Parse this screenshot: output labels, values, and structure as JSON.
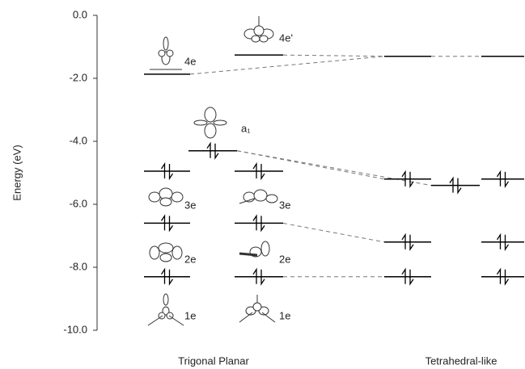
{
  "chart_data": {
    "type": "energy-levels",
    "ylabel": "Energy (eV)",
    "ylim": [
      -10,
      0
    ],
    "yticks": [
      {
        "value": 0,
        "label": "0.0"
      },
      {
        "value": -2,
        "label": "-2.0"
      },
      {
        "value": -4,
        "label": "-4.0"
      },
      {
        "value": -6,
        "label": "-6.0"
      },
      {
        "value": -8,
        "label": "-8.0"
      },
      {
        "value": -10,
        "label": "-10.0"
      }
    ],
    "group_labels": [
      "Trigonal Planar",
      "Tetrahedral-like"
    ],
    "color": "#000000",
    "columns": [
      {
        "values": [
          -1.87,
          -4.95,
          -6.6,
          -8.3
        ],
        "occupied": [
          false,
          true,
          true,
          true
        ],
        "labels": [
          "4e",
          "3e",
          "2e",
          "1e"
        ]
      },
      {
        "values": [
          -4.3
        ],
        "occupied": [
          true
        ],
        "labels": [
          "a₁"
        ]
      },
      {
        "values": [
          -1.26,
          -4.95,
          -6.6,
          -8.3
        ],
        "occupied": [
          false,
          true,
          true,
          true
        ],
        "labels": [
          "4e'",
          "3e",
          "2e",
          "1e"
        ]
      },
      {
        "values": [
          -1.3,
          -5.2,
          -7.2,
          -8.3
        ],
        "occupied": [
          false,
          true,
          true,
          true
        ]
      },
      {
        "values": [
          -5.4
        ],
        "occupied": [
          true
        ]
      },
      {
        "values": [
          -1.3,
          -5.2,
          -7.2,
          -8.3
        ],
        "occupied": [
          false,
          true,
          true,
          true
        ]
      }
    ]
  }
}
